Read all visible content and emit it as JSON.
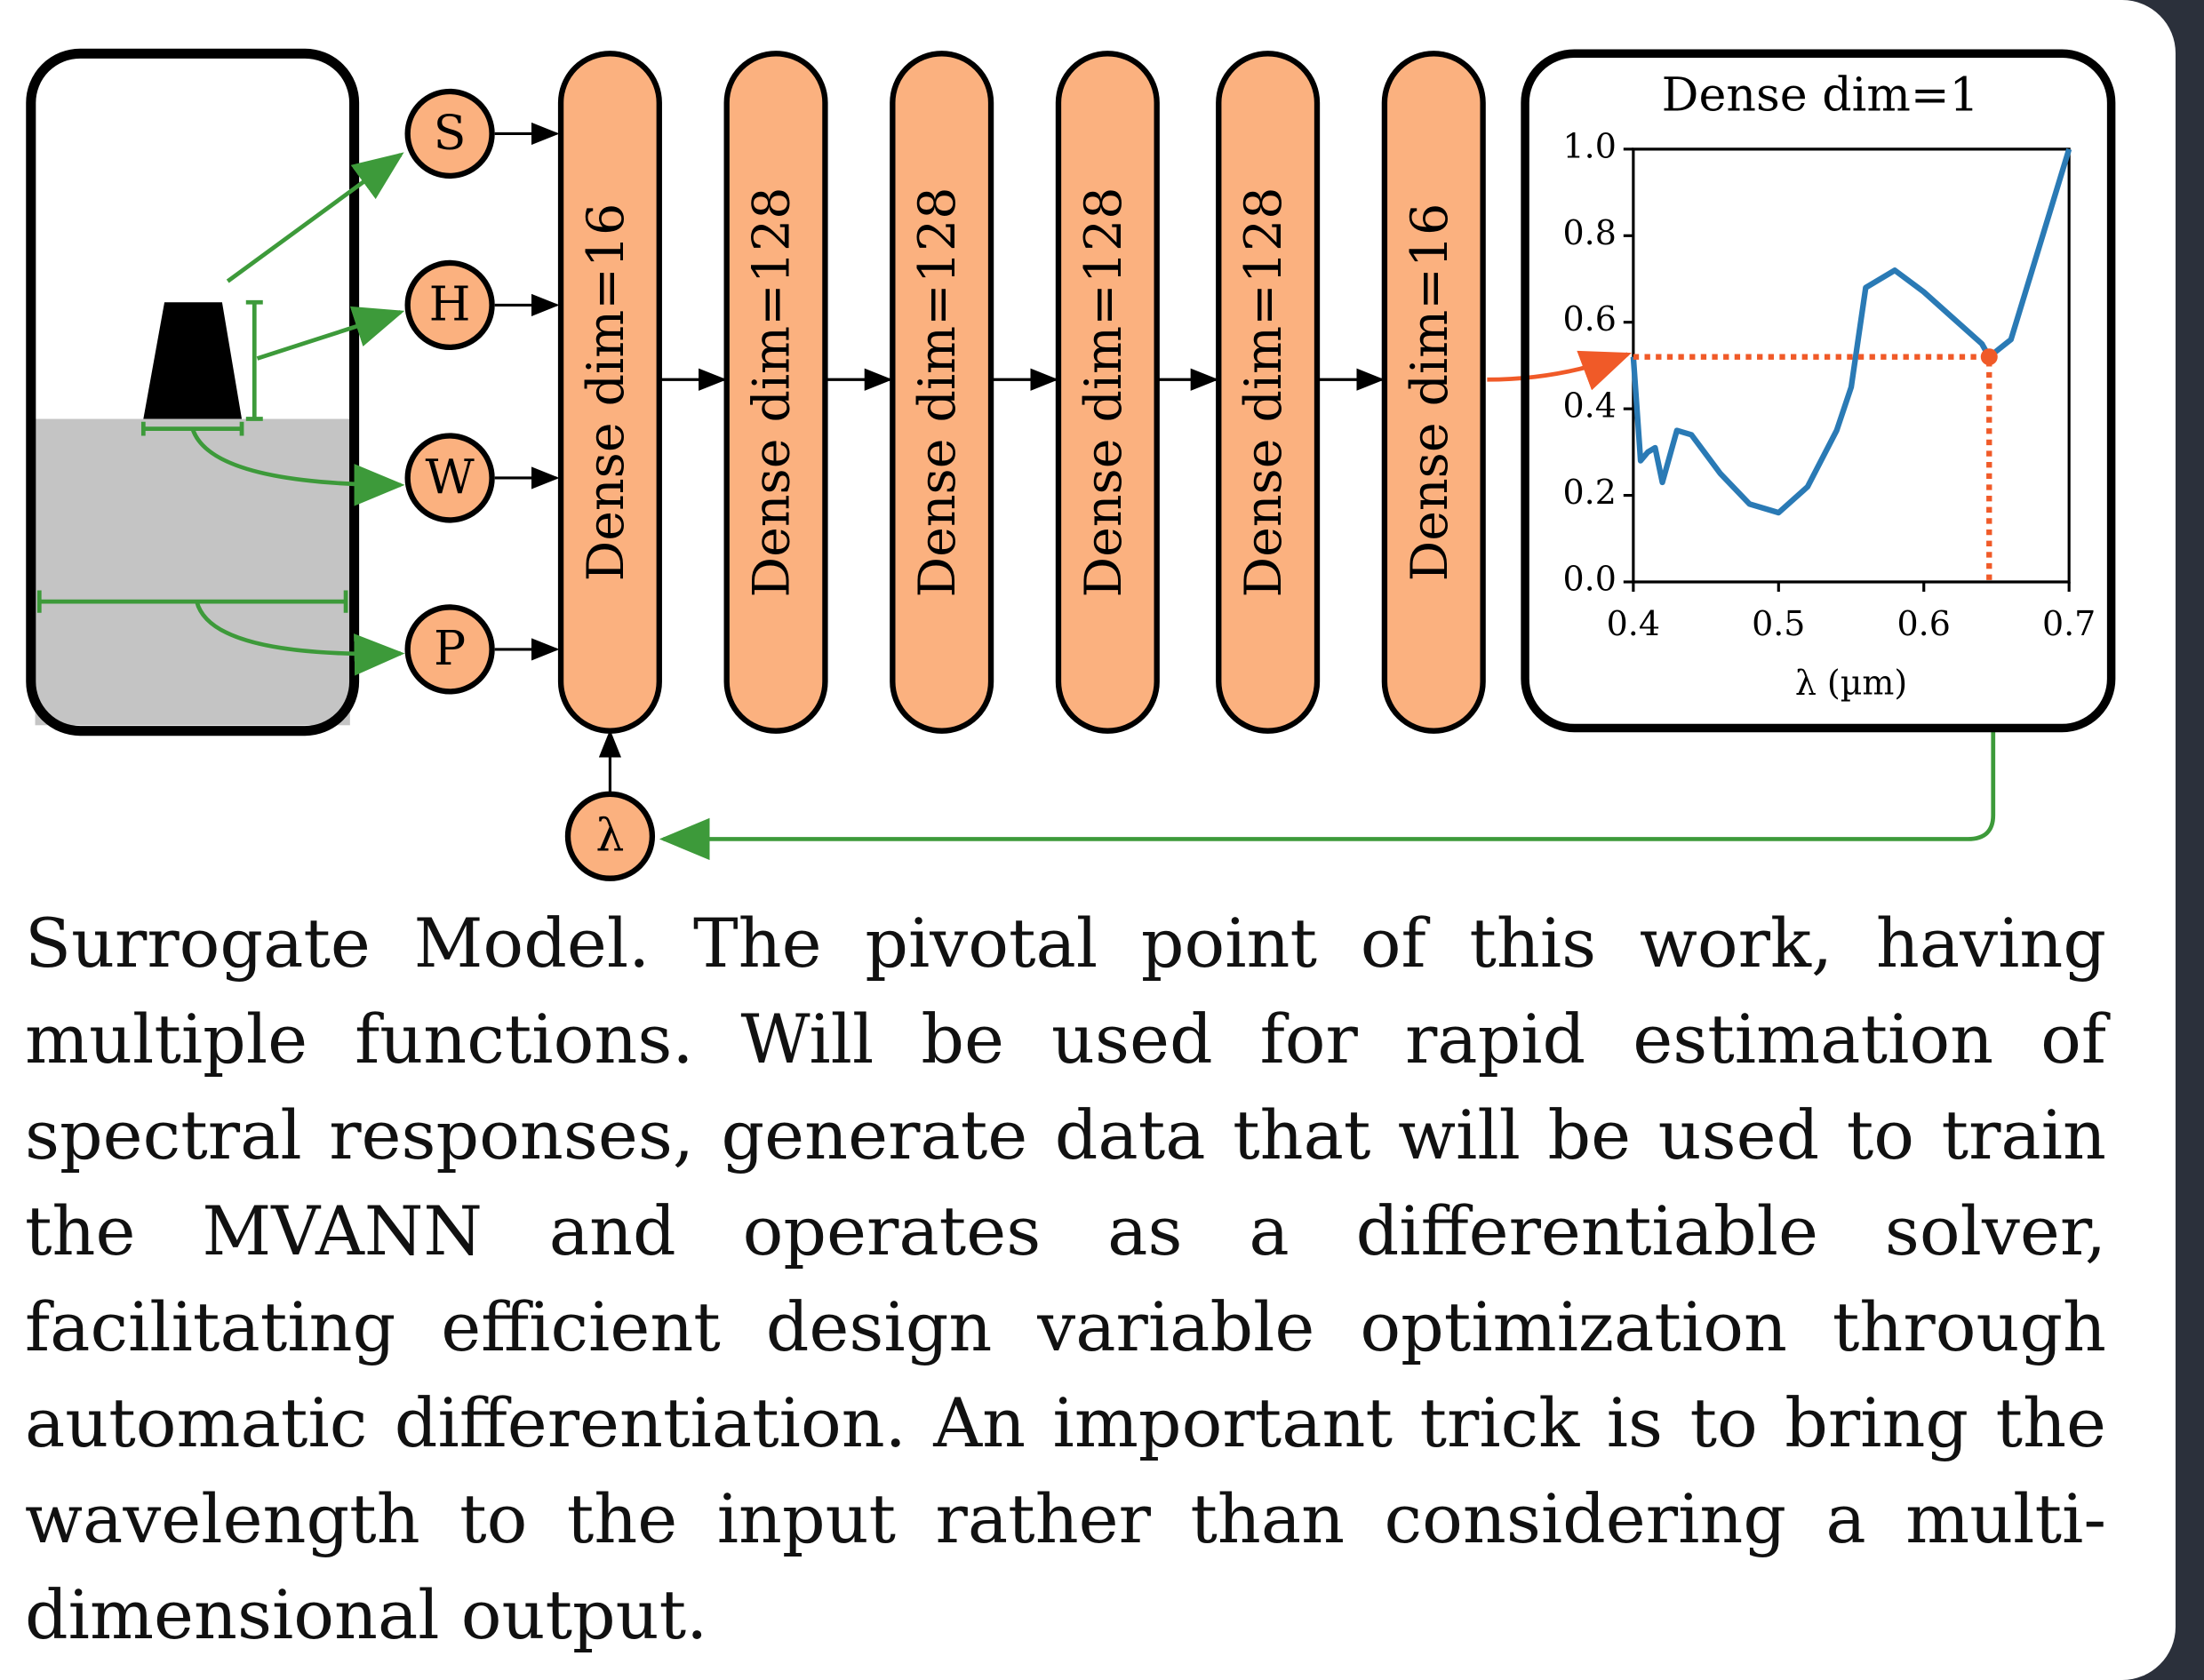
{
  "inputs": [
    "S",
    "H",
    "W",
    "P"
  ],
  "wavelength_input": "λ",
  "layers": [
    "Dense dim=16",
    "Dense dim=128",
    "Dense dim=128",
    "Dense dim=128",
    "Dense dim=128",
    "Dense dim=16"
  ],
  "plot": {
    "type": "line",
    "title": "Dense dim=1",
    "x_label": "λ (µm)",
    "xlim": [
      0.4,
      0.7
    ],
    "ylim": [
      0,
      1
    ],
    "xticks": [
      0.4,
      0.5,
      0.6,
      0.7
    ],
    "yticks": [
      {
        "value": 0,
        "label": "0.0"
      },
      0.2,
      0.4,
      0.6,
      0.8,
      {
        "value": 1,
        "label": "1.0"
      }
    ],
    "color": "#2a7ab5",
    "x": [
      0.4,
      0.405,
      0.41,
      0.415,
      0.42,
      0.43,
      0.44,
      0.46,
      0.48,
      0.5,
      0.52,
      0.54,
      0.55,
      0.56,
      0.58,
      0.6,
      0.62,
      0.64,
      0.645,
      0.66,
      0.68,
      0.7
    ],
    "values": [
      0.52,
      0.28,
      0.3,
      0.31,
      0.23,
      0.35,
      0.34,
      0.25,
      0.18,
      0.16,
      0.22,
      0.35,
      0.45,
      0.68,
      0.72,
      0.67,
      0.61,
      0.55,
      0.52,
      0.56,
      0.78,
      1.0
    ],
    "highlight": {
      "x": 0.645,
      "y": 0.52,
      "color": "#f05a28"
    }
  },
  "caption": "Surrogate Model. The pivotal point of this work, having multiple functions. Will be used for rapid estimation of spectral responses, generate data that will be used to train the MVANN and operates as a differentiable solver, facilitating efficient design variable optimization through automatic differentiation. An important trick is to bring the wavelength to the input rather than considering a multi-dimensional output."
}
